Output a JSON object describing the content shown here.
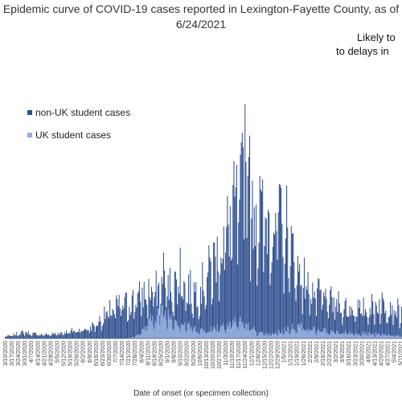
{
  "title": {
    "line1": "Epidemic curve of COVID-19 cases reported in Lexington-Fayette County, as of",
    "line2": "6/24/2021"
  },
  "annotation": {
    "line1": "Likely to",
    "line2": "to delays in"
  },
  "colors": {
    "non_uk": "#2f4f8f",
    "uk": "#93aede"
  },
  "chart_data": {
    "type": "bar",
    "stacked": true,
    "xlabel": "Date of onset (or specimen collection)",
    "ylabel": "",
    "grid": false,
    "legend": "upper-left",
    "x_start": "3/10/2020",
    "x_end": "5/12/2021",
    "ylim": [
      0,
      270
    ],
    "x_tick_labels": [
      "3/10/2020",
      "3/17/2020",
      "3/24/2020",
      "3/31/2020",
      "4/7/2020",
      "4/14/2020",
      "4/21/2020",
      "4/28/2020",
      "5/5/2020",
      "5/12/2020",
      "5/19/2020",
      "5/26/2020",
      "6/2/2020",
      "6/9/2020",
      "6/16/2020",
      "6/23/2020",
      "6/30/2020",
      "7/7/2020",
      "7/14/2020",
      "7/21/2020",
      "7/28/2020",
      "8/4/2020",
      "8/11/2020",
      "8/18/2020",
      "8/25/2020",
      "9/1/2020",
      "9/8/2020",
      "9/15/2020",
      "9/22/2020",
      "9/29/2020",
      "10/6/2020",
      "10/13/2020",
      "10/20/2020",
      "10/27/2020",
      "11/3/2020",
      "11/10/2020",
      "11/17/2020",
      "11/24/2020",
      "12/1/2020",
      "12/8/2020",
      "12/15/2020",
      "12/22/2020",
      "12/29/2020",
      "1/5/2021",
      "1/12/2021",
      "1/19/2021",
      "1/26/2021",
      "2/2/2021",
      "2/9/2021",
      "2/16/2021",
      "2/23/2021",
      "3/2/2021",
      "3/9/2021",
      "3/16/2021",
      "3/23/2021",
      "3/30/2021",
      "4/6/2021",
      "4/13/2021",
      "4/20/2021",
      "4/27/2021",
      "5/4/2021",
      "5/11/2021"
    ],
    "series": [
      {
        "name": "non-UK student cases",
        "weekly_avg_values": [
          2,
          3,
          5,
          6,
          5,
          4,
          4,
          4,
          5,
          6,
          7,
          8,
          9,
          10,
          14,
          20,
          26,
          30,
          32,
          34,
          38,
          42,
          44,
          46,
          48,
          50,
          52,
          54,
          48,
          46,
          48,
          58,
          72,
          86,
          100,
          118,
          130,
          145,
          140,
          120,
          110,
          120,
          115,
          100,
          90,
          70,
          58,
          50,
          42,
          40,
          36,
          34,
          32,
          30,
          30,
          28,
          30,
          32,
          34,
          34,
          32,
          24
        ],
        "peaks": [
          {
            "x": "11/24/2020",
            "value": 245
          },
          {
            "x": "11/21/2020",
            "value": 215
          },
          {
            "x": "11/28/2020",
            "value": 190
          },
          {
            "x": "12/2/2020",
            "value": 165
          },
          {
            "x": "12/10/2020",
            "value": 170
          },
          {
            "x": "1/8/2021",
            "value": 160
          },
          {
            "x": "8/28/2020",
            "value": 90
          },
          {
            "x": "9/15/2020",
            "value": 95
          }
        ]
      },
      {
        "name": "UK student cases",
        "weekly_avg_values": [
          0,
          0,
          0,
          0,
          0,
          0,
          0,
          0,
          0,
          0,
          0,
          0,
          0,
          0,
          0,
          0,
          0,
          0,
          0,
          0,
          2,
          6,
          14,
          22,
          26,
          24,
          20,
          16,
          12,
          10,
          8,
          8,
          10,
          12,
          14,
          16,
          16,
          14,
          10,
          6,
          4,
          4,
          6,
          8,
          10,
          12,
          12,
          10,
          8,
          8,
          6,
          6,
          6,
          6,
          5,
          5,
          5,
          4,
          4,
          4,
          3,
          2
        ]
      }
    ]
  }
}
